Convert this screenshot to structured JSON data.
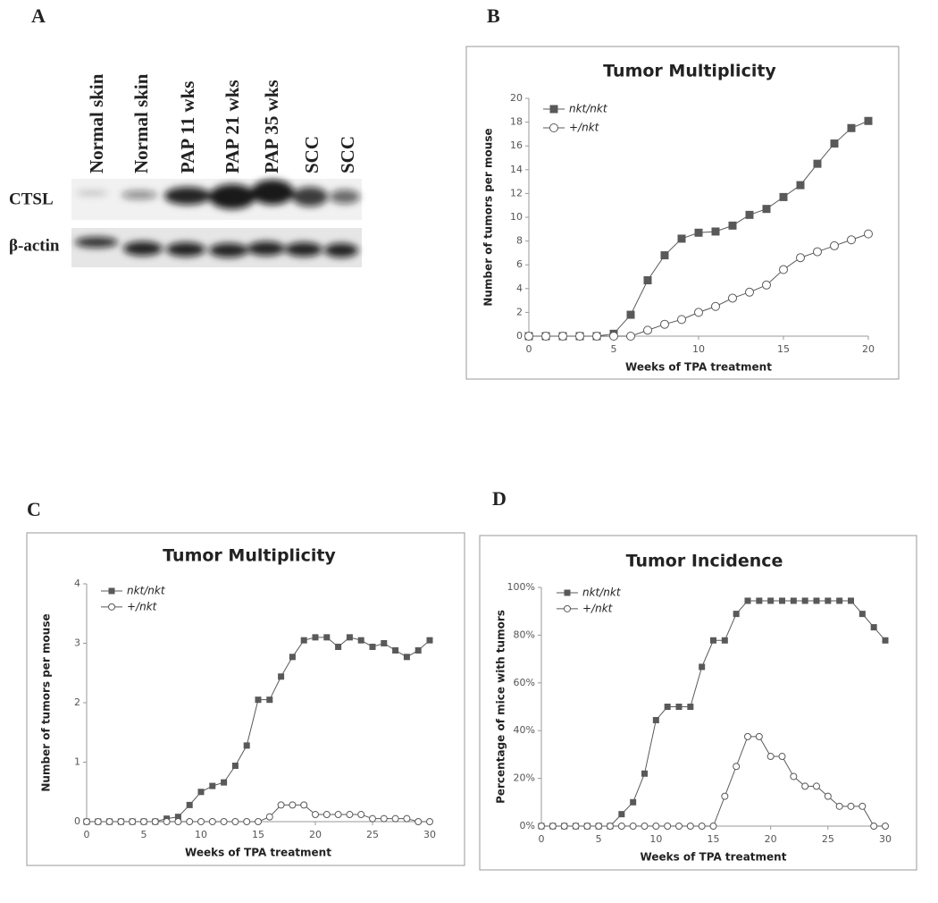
{
  "panel_labels": [
    "A",
    "B",
    "C",
    "D"
  ],
  "blot": {
    "lanes": [
      "Normal skin",
      "Normal skin",
      "PAP 11 wks",
      "PAP 21 wks",
      "PAP 35 wks",
      "SCC",
      "SCC"
    ],
    "rows": [
      "CTSL",
      "β-actin"
    ]
  },
  "chart_data": [
    {
      "type": "line",
      "title": "Tumor Multiplicity",
      "xlabel": "Weeks of TPA treatment",
      "ylabel": "Number of tumors per mouse",
      "x": [
        0,
        1,
        2,
        3,
        4,
        5,
        6,
        7,
        8,
        9,
        10,
        11,
        12,
        13,
        14,
        15,
        16,
        17,
        18,
        19,
        20
      ],
      "series": [
        {
          "name": "nkt/nkt",
          "color": "#595959",
          "marker": "square",
          "values": [
            0,
            0,
            0,
            0,
            0,
            0.2,
            1.8,
            4.7,
            6.8,
            8.2,
            8.7,
            8.8,
            9.3,
            10.2,
            10.7,
            11.7,
            12.7,
            14.5,
            16.2,
            17.5,
            18.1
          ]
        },
        {
          "name": "+/nkt",
          "color": "#595959",
          "marker": "circle",
          "values": [
            0,
            0,
            0,
            0,
            0,
            0,
            0,
            0.5,
            1,
            1.4,
            2,
            2.5,
            3.2,
            3.7,
            4.3,
            5.6,
            6.6,
            7.1,
            7.6,
            8.1,
            8.6
          ]
        }
      ],
      "xlim": [
        0,
        20
      ],
      "xticks": [
        0,
        5,
        10,
        15,
        20
      ],
      "ylim": [
        0,
        20
      ],
      "yticks": [
        0,
        2,
        4,
        6,
        8,
        10,
        12,
        14,
        16,
        18,
        20
      ]
    },
    {
      "type": "line",
      "title": "Tumor Multiplicity",
      "xlabel": "Weeks of TPA treatment",
      "ylabel": "Number of tumors per mouse",
      "x": [
        0,
        1,
        2,
        3,
        4,
        5,
        6,
        7,
        8,
        9,
        10,
        11,
        12,
        13,
        14,
        15,
        16,
        17,
        18,
        19,
        20,
        21,
        22,
        23,
        24,
        25,
        26,
        27,
        28,
        29,
        30
      ],
      "series": [
        {
          "name": "nkt/nkt",
          "color": "#595959",
          "marker": "square",
          "values": [
            0,
            0,
            0,
            0,
            0,
            0,
            0,
            0.05,
            0.08,
            0.28,
            0.5,
            0.6,
            0.66,
            0.94,
            1.28,
            2.05,
            2.05,
            2.44,
            2.77,
            3.05,
            3.1,
            3.1,
            2.94,
            3.1,
            3.05,
            2.94,
            3.0,
            2.88,
            2.77,
            2.88,
            3.05
          ]
        },
        {
          "name": "+/nkt",
          "color": "#595959",
          "marker": "circle",
          "values": [
            0,
            0,
            0,
            0,
            0,
            0,
            0,
            0,
            0,
            0,
            0,
            0,
            0,
            0,
            0,
            0,
            0.08,
            0.28,
            0.28,
            0.28,
            0.12,
            0.12,
            0.12,
            0.12,
            0.12,
            0.05,
            0.05,
            0.05,
            0.05,
            0,
            0
          ]
        }
      ],
      "xlim": [
        0,
        30
      ],
      "xticks": [
        0,
        5,
        10,
        15,
        20,
        25,
        30
      ],
      "ylim": [
        0,
        4
      ],
      "yticks": [
        0,
        1,
        2,
        3,
        4
      ]
    },
    {
      "type": "line",
      "title": "Tumor Incidence",
      "xlabel": "Weeks of TPA treatment",
      "ylabel": "Percentage of mice with tumors",
      "x": [
        0,
        1,
        2,
        3,
        4,
        5,
        6,
        7,
        8,
        9,
        10,
        11,
        12,
        13,
        14,
        15,
        16,
        17,
        18,
        19,
        20,
        21,
        22,
        23,
        24,
        25,
        26,
        27,
        28,
        29,
        30
      ],
      "series": [
        {
          "name": "nkt/nkt",
          "color": "#595959",
          "marker": "square",
          "values": [
            0,
            0,
            0,
            0,
            0,
            0,
            0,
            5,
            10,
            22,
            44.4,
            50,
            50,
            50,
            66.7,
            77.8,
            77.8,
            88.9,
            94.4,
            94.4,
            94.4,
            94.4,
            94.4,
            94.4,
            94.4,
            94.4,
            94.4,
            94.4,
            88.9,
            83.3,
            77.8
          ]
        },
        {
          "name": "+/nkt",
          "color": "#595959",
          "marker": "circle",
          "values": [
            0,
            0,
            0,
            0,
            0,
            0,
            0,
            0,
            0,
            0,
            0,
            0,
            0,
            0,
            0,
            0,
            12.5,
            25,
            37.5,
            37.5,
            29.2,
            29.2,
            20.8,
            16.7,
            16.7,
            12.5,
            8.3,
            8.3,
            8.3,
            0,
            0
          ]
        }
      ],
      "xlim": [
        0,
        30
      ],
      "xticks": [
        0,
        5,
        10,
        15,
        20,
        25,
        30
      ],
      "ylim": [
        0,
        100
      ],
      "yticks": [
        {
          "value": 0,
          "label": "0%"
        },
        {
          "value": 20,
          "label": "20%"
        },
        {
          "value": 40,
          "label": "40%"
        },
        {
          "value": 60,
          "label": "60%"
        },
        {
          "value": 80,
          "label": "80%"
        },
        {
          "value": 100,
          "label": "100%"
        }
      ]
    }
  ]
}
